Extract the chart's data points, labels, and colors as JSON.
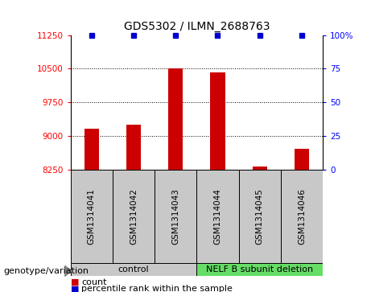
{
  "title": "GDS5302 / ILMN_2688763",
  "samples": [
    "GSM1314041",
    "GSM1314042",
    "GSM1314043",
    "GSM1314044",
    "GSM1314045",
    "GSM1314046"
  ],
  "counts": [
    9150,
    9250,
    10510,
    10420,
    8310,
    8700
  ],
  "percentile_ranks": [
    100,
    100,
    100,
    100,
    100,
    100
  ],
  "bar_color": "#cc0000",
  "dot_color": "#0000cc",
  "ylim_left": [
    8250,
    11250
  ],
  "ylim_right": [
    0,
    100
  ],
  "yticks_left": [
    8250,
    9000,
    9750,
    10500,
    11250
  ],
  "yticks_right": [
    0,
    25,
    50,
    75,
    100
  ],
  "ytick_right_labels": [
    "0",
    "25",
    "50",
    "75",
    "100%"
  ],
  "groups": [
    {
      "label": "control",
      "indices": [
        0,
        1,
        2
      ],
      "color": "#c8c8c8"
    },
    {
      "label": "NELF B subunit deletion",
      "indices": [
        3,
        4,
        5
      ],
      "color": "#66dd66"
    }
  ],
  "group_label_prefix": "genotype/variation",
  "legend_count_label": "count",
  "legend_percentile_label": "percentile rank within the sample",
  "sample_box_color": "#c8c8c8",
  "plot_bg_color": "#ffffff",
  "bar_width": 0.35,
  "title_fontsize": 10,
  "tick_fontsize": 7.5,
  "label_fontsize": 7.5,
  "group_fontsize": 8,
  "legend_fontsize": 8
}
